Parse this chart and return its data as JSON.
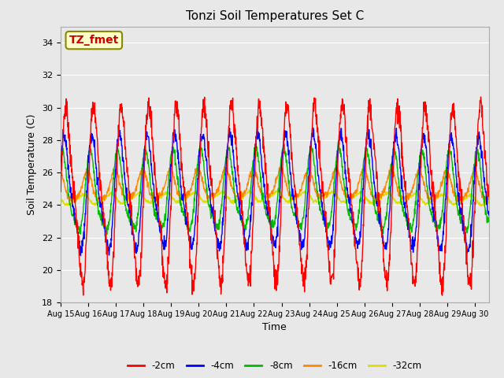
{
  "title": "Tonzi Soil Temperatures Set C",
  "xlabel": "Time",
  "ylabel": "Soil Temperature (C)",
  "ylim": [
    18,
    35
  ],
  "xlim_days": 15.5,
  "annotation_text": "TZ_fmet",
  "legend_labels": [
    "-2cm",
    "-4cm",
    "-8cm",
    "-16cm",
    "-32cm"
  ],
  "legend_colors": [
    "#ff0000",
    "#0000ff",
    "#00bb00",
    "#ff8800",
    "#dddd00"
  ],
  "x_tick_labels": [
    "Aug 15",
    "Aug 16",
    "Aug 17",
    "Aug 18",
    "Aug 19",
    "Aug 20",
    "Aug 21",
    "Aug 22",
    "Aug 23",
    "Aug 24",
    "Aug 25",
    "Aug 26",
    "Aug 27",
    "Aug 28",
    "Aug 29",
    "Aug 30"
  ],
  "background_color": "#e8e8e8",
  "fig_background": "#e8e8e8",
  "grid_color": "#ffffff",
  "n_days": 15.5,
  "points_per_day": 96,
  "base_temp": 24.5,
  "amp_2cm": 5.0,
  "amp_4cm": 3.2,
  "amp_8cm": 2.3,
  "amp_16cm": 0.85,
  "amp_32cm": 0.28,
  "phase_2cm": 0.0,
  "phase_4cm": 0.45,
  "phase_8cm": 1.0,
  "phase_16cm": 1.8,
  "phase_32cm": 2.8,
  "base_shift_2cm": 0.0,
  "base_shift_4cm": 0.0,
  "base_shift_8cm": 0.0,
  "base_shift_16cm": 0.5,
  "base_shift_32cm": -0.2,
  "noise_2cm": 0.35,
  "noise_4cm": 0.2,
  "noise_8cm": 0.15,
  "noise_16cm": 0.1,
  "noise_32cm": 0.05,
  "yticks": [
    18,
    20,
    22,
    24,
    26,
    28,
    30,
    32,
    34
  ]
}
